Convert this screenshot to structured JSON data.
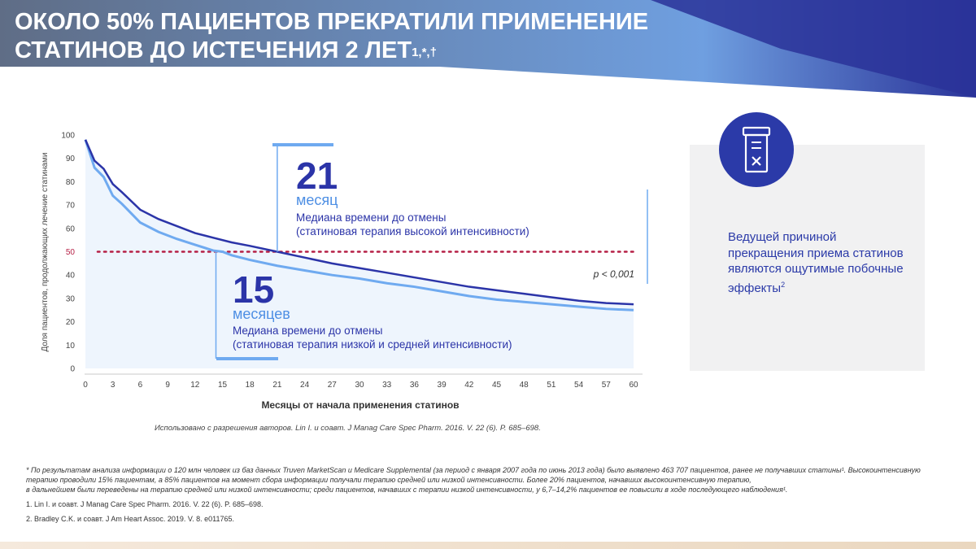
{
  "slide": {
    "title_line1": "ОКОЛО 50% ПАЦИЕНТОВ ПРЕКРАТИЛИ ПРИМЕНЕНИЕ",
    "title_line2": "СТАТИНОВ ДО ИСТЕЧЕНИЯ 2 ЛЕТ",
    "title_superscript": "1,*,†",
    "side_text": "Ведущей причиной прекращения приема статинов являются ощутимые побочные эффекты",
    "side_text_superscript": "2",
    "icon": "pill-bottle-x-icon",
    "credit": "Использовано с разрешения авторов. Lin I. и соавт. J Manag Care Spec Pharm. 2016. V. 22 (6). P. 685–698.",
    "footnote": "* По результатам анализа информации о 120 млн человек из баз данных Truven MarketScan и Medicare Supplemental (за период с января 2007 года по июнь 2013 года) было выявлено 463 707 пациентов, ранее не получавших статины¹. Высокоинтенсивную терапию проводили 15% пациентам, а 85% пациентов на момент сбора информации получали терапию средней или низкой интенсивности. Более 20% пациентов, начавших высокоинтенсивную терапию,",
    "footnote_cont": "в дальнейшем были переведены на терапию средней или низкой интенсивности; среди пациентов, начавших с терапии низкой интенсивности, у 6,7–14,2% пациентов ее повысили в ходе последующего наблюдения¹.",
    "references": [
      "1. Lin I. и соавт. J Manag Care Spec Pharm. 2016. V. 22 (6). P. 685–698.",
      "2. Bradley C.K. и соавт. J Am Heart Assoc. 2019. V. 8. e011765."
    ]
  },
  "colors": {
    "header_left": "#5f6d86",
    "header_mid": "#6f9fe0",
    "header_right": "#2a3399",
    "high_intensity": "#2b34a8",
    "low_intensity": "#6faaf0",
    "reference_line": "#b51f45",
    "icon_circle": "#2b3aa8"
  },
  "chart_data": {
    "type": "line",
    "xlabel": "Месяцы от начала применения статинов",
    "ylabel": "Доля пациентов, продолжающих лечение статинами",
    "xlim": [
      0,
      60
    ],
    "ylim": [
      0,
      100
    ],
    "xticks": [
      0,
      3,
      6,
      9,
      12,
      15,
      18,
      21,
      24,
      27,
      30,
      33,
      36,
      39,
      42,
      45,
      48,
      51,
      54,
      57,
      60
    ],
    "yticks": [
      0,
      10,
      20,
      30,
      40,
      50,
      60,
      70,
      80,
      90,
      100
    ],
    "reference_line_y": 50,
    "series": [
      {
        "id": "high",
        "x": [
          0,
          1,
          2,
          3,
          4,
          6,
          8,
          10,
          12,
          14,
          16,
          18,
          21,
          24,
          27,
          30,
          33,
          36,
          39,
          42,
          45,
          48,
          51,
          54,
          57,
          60
        ],
        "y": [
          98,
          89,
          85.5,
          79,
          75.5,
          68,
          64,
          61,
          58,
          56,
          54,
          52.5,
          50,
          47.5,
          45,
          43,
          41,
          39,
          37,
          35,
          33.5,
          32,
          30.5,
          29,
          28,
          27.5
        ]
      },
      {
        "id": "low",
        "x": [
          0,
          1,
          2,
          3,
          4,
          6,
          8,
          10,
          12,
          14,
          15,
          16,
          18,
          21,
          24,
          27,
          30,
          33,
          36,
          39,
          42,
          45,
          48,
          51,
          54,
          57,
          60
        ],
        "y": [
          98,
          86,
          82,
          74,
          70.5,
          62.5,
          58.5,
          55.5,
          53,
          50.5,
          50,
          48.5,
          46.5,
          44,
          42,
          40,
          38.5,
          36.5,
          35,
          33,
          31,
          29.5,
          28.5,
          27.5,
          26.5,
          25.5,
          25
        ]
      }
    ],
    "annotations": {
      "high_value": "21",
      "high_unit": "месяц",
      "high_desc_line1": "Медиана времени до отмены",
      "high_desc_line2": "(статиновая терапия высокой интенсивности)",
      "low_value": "15",
      "low_unit": "месяцев",
      "low_desc_line1": "Медиана времени до отмены",
      "low_desc_line2": "(статиновая терапия низкой и средней интенсивности)",
      "p_value": "p < 0,001"
    }
  }
}
